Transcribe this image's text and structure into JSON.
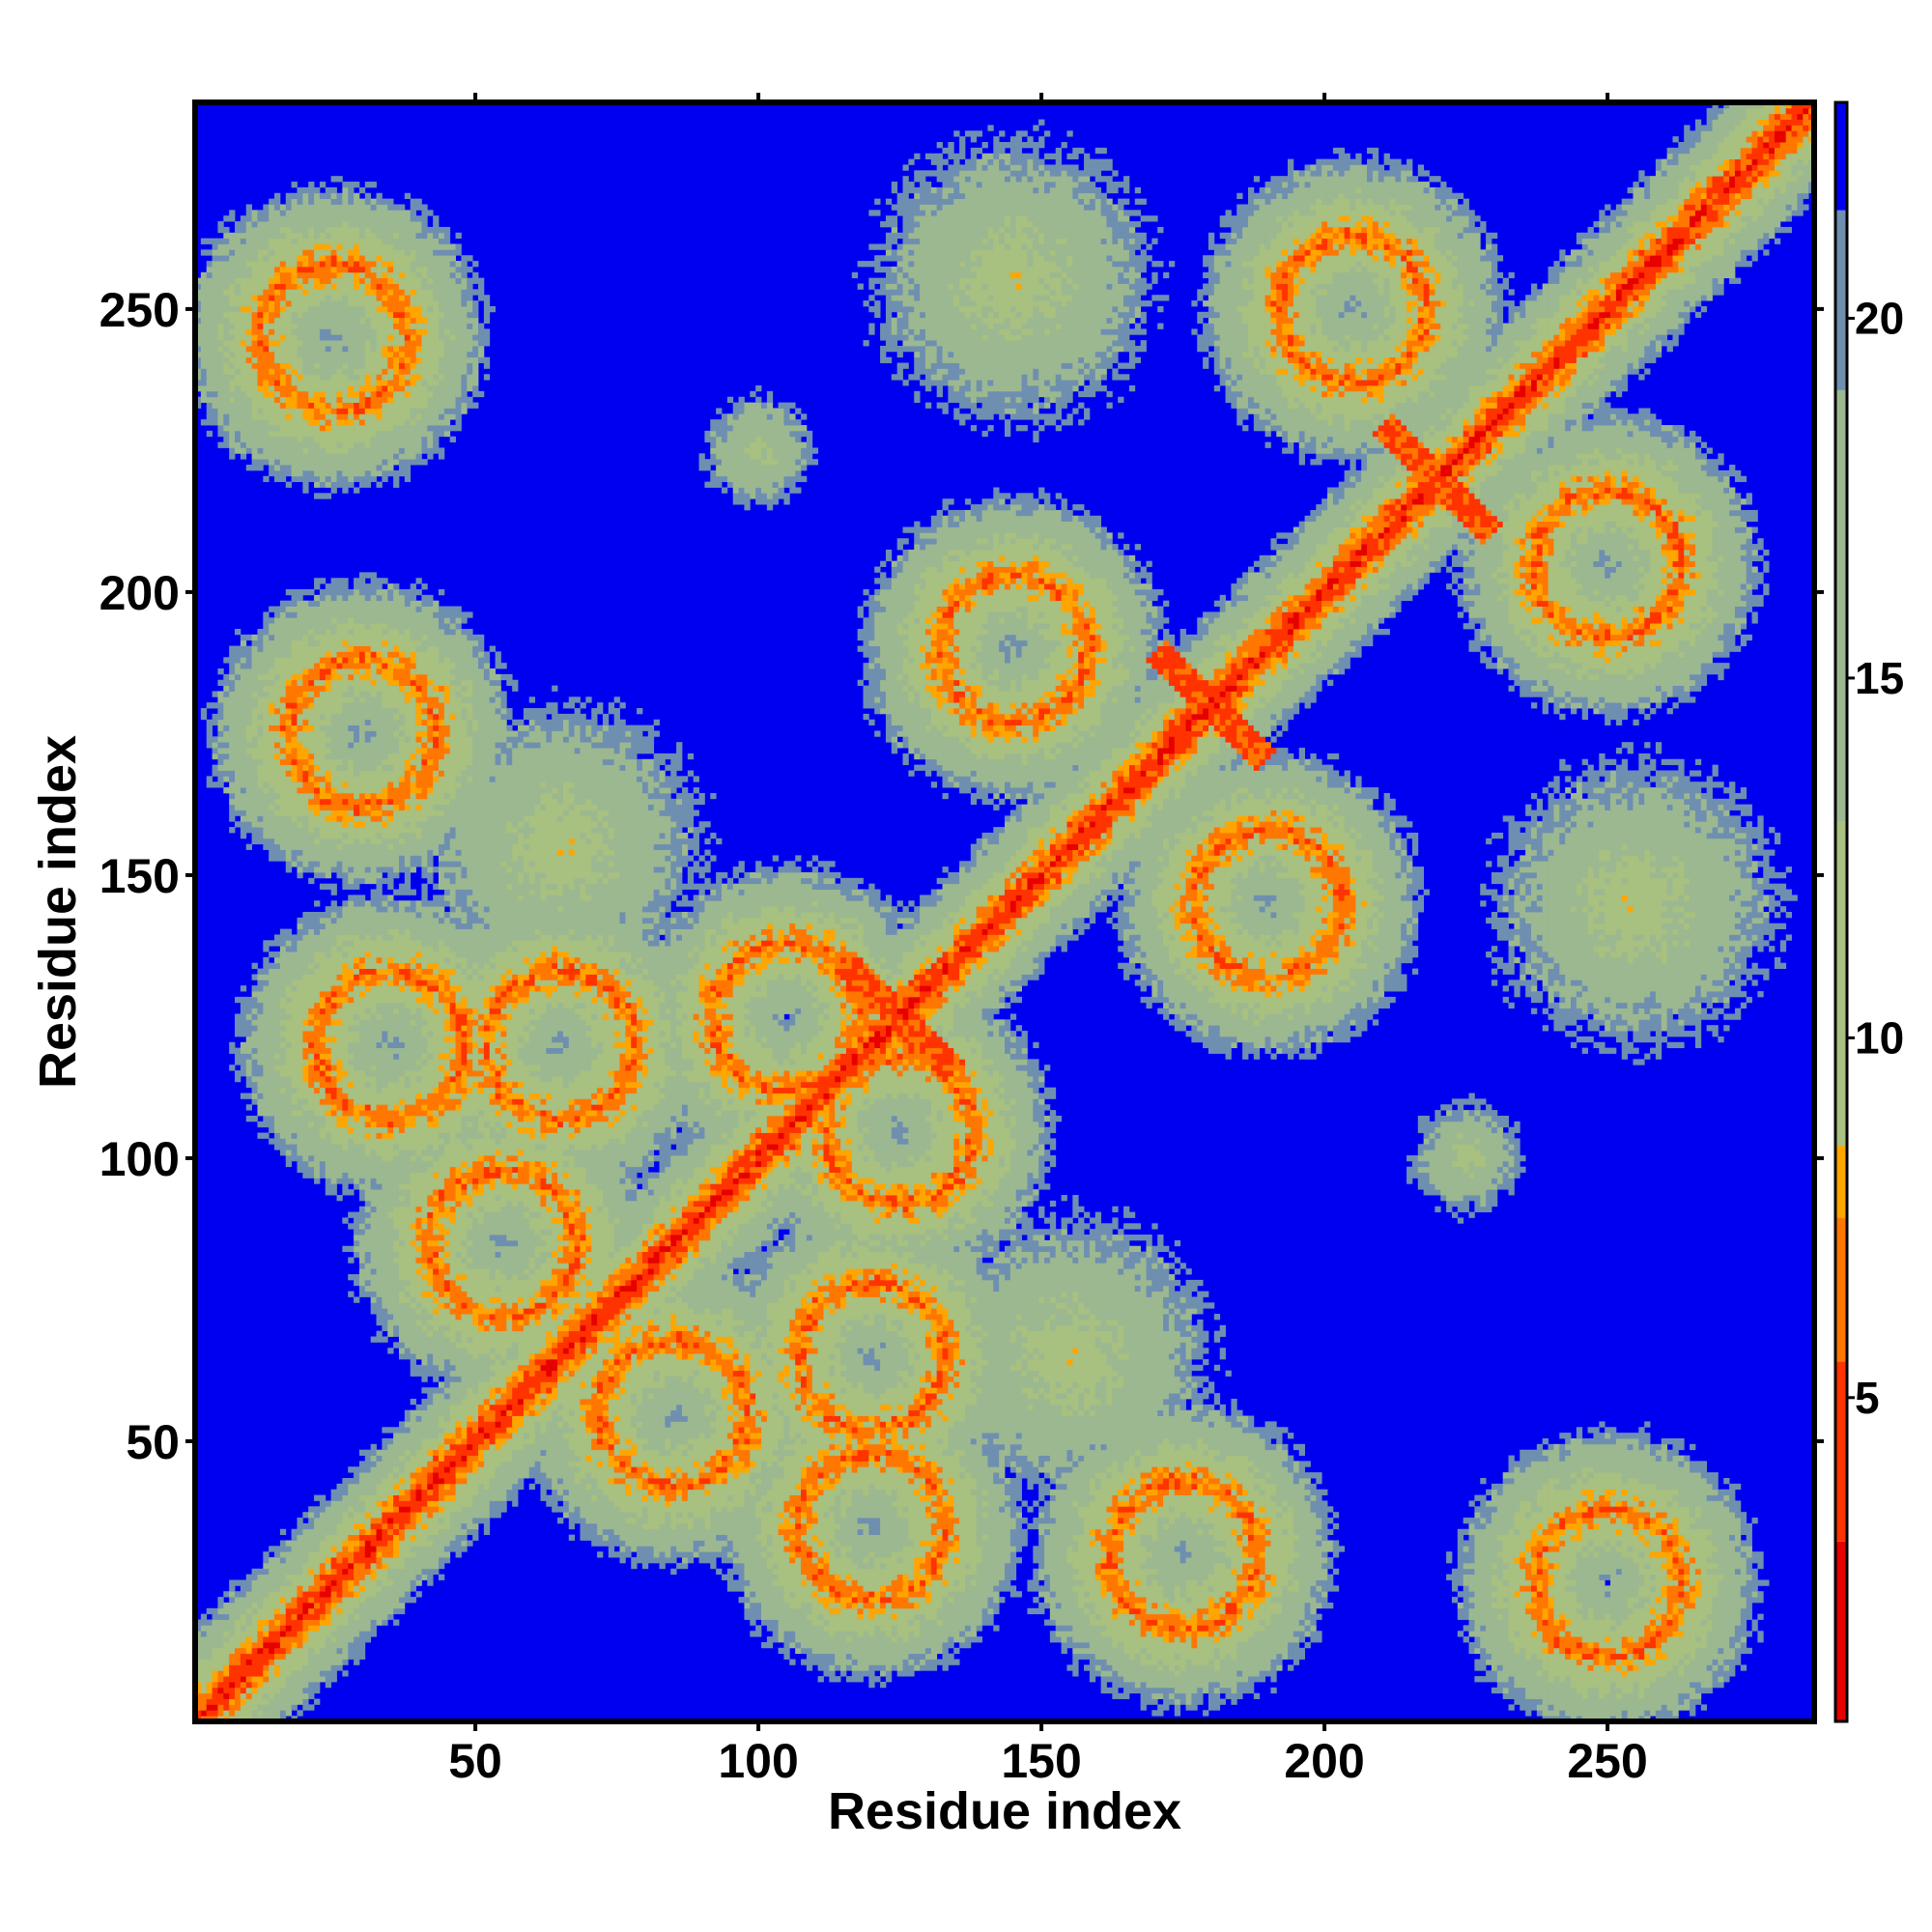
{
  "chart_data": {
    "type": "heatmap",
    "title": "",
    "xlabel": "Residue index",
    "ylabel": "Residue index",
    "n_residues": 286,
    "xlim": [
      1,
      286
    ],
    "ylim": [
      1,
      286
    ],
    "x_ticks": [
      50,
      100,
      150,
      200,
      250
    ],
    "y_ticks": [
      50,
      100,
      150,
      200,
      250
    ],
    "colorbar": {
      "range": [
        0.5,
        23
      ],
      "ticks": [
        5,
        10,
        15,
        20
      ],
      "colors": [
        {
          "at": 0.5,
          "hex": "#e60000"
        },
        {
          "at": 3,
          "hex": "#ff3300"
        },
        {
          "at": 5.5,
          "hex": "#ff7700"
        },
        {
          "at": 7.5,
          "hex": "#ffa500"
        },
        {
          "at": 8.5,
          "hex": "#a8c080"
        },
        {
          "at": 13,
          "hex": "#9cb890"
        },
        {
          "at": 19,
          "hex": "#6f8fb0"
        },
        {
          "at": 21.5,
          "hex": "#0000f0"
        }
      ],
      "saturation_color": "#0000f0"
    },
    "structure": {
      "diagonal": "distance increases from the main diagonal (red) through orange and grey-green to blue at long range",
      "contact_regions": [
        {
          "x": 25,
          "y": 245,
          "kind": "ring"
        },
        {
          "x": 145,
          "y": 255,
          "kind": "blob"
        },
        {
          "x": 250,
          "y": 25,
          "kind": "ring"
        },
        {
          "x": 255,
          "y": 145,
          "kind": "blob"
        },
        {
          "x": 205,
          "y": 250,
          "kind": "ring"
        },
        {
          "x": 250,
          "y": 205,
          "kind": "ring"
        },
        {
          "x": 30,
          "y": 175,
          "kind": "ring"
        },
        {
          "x": 175,
          "y": 30,
          "kind": "ring"
        },
        {
          "x": 65,
          "y": 155,
          "kind": "blob"
        },
        {
          "x": 155,
          "y": 65,
          "kind": "blob"
        },
        {
          "x": 125,
          "y": 125,
          "kind": "cross"
        },
        {
          "x": 105,
          "y": 125,
          "kind": "ring"
        },
        {
          "x": 125,
          "y": 105,
          "kind": "ring"
        },
        {
          "x": 65,
          "y": 120,
          "kind": "ring"
        },
        {
          "x": 120,
          "y": 65,
          "kind": "ring"
        },
        {
          "x": 180,
          "y": 180,
          "kind": "cross"
        },
        {
          "x": 220,
          "y": 220,
          "kind": "cross"
        },
        {
          "x": 85,
          "y": 55,
          "kind": "ring"
        },
        {
          "x": 55,
          "y": 85,
          "kind": "ring"
        },
        {
          "x": 120,
          "y": 35,
          "kind": "ring"
        },
        {
          "x": 35,
          "y": 120,
          "kind": "ring"
        },
        {
          "x": 145,
          "y": 190,
          "kind": "ring"
        },
        {
          "x": 190,
          "y": 145,
          "kind": "ring"
        },
        {
          "x": 100,
          "y": 225,
          "kind": "patch"
        },
        {
          "x": 225,
          "y": 100,
          "kind": "patch"
        }
      ]
    }
  }
}
